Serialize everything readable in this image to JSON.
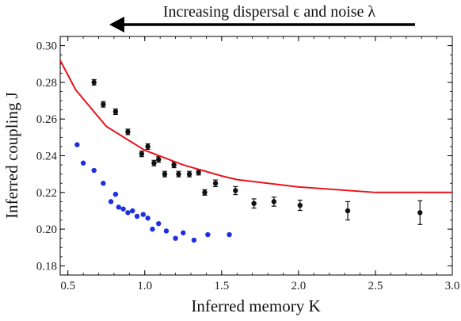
{
  "chart_data": {
    "type": "scatter",
    "title": "",
    "banner": {
      "text": "Increasing dispersal ϵ and noise λ",
      "direction": "left"
    },
    "xlabel": "Inferred memory K",
    "ylabel": "Inferred coupling J",
    "xlim": [
      0.45,
      3.0
    ],
    "ylim": [
      0.175,
      0.305
    ],
    "x_ticks": [
      0.5,
      1.0,
      1.5,
      2.0,
      2.5,
      3.0
    ],
    "x_tick_labels": [
      "0.5",
      "1.0",
      "1.5",
      "2.0",
      "2.5",
      "3.0"
    ],
    "y_ticks": [
      0.18,
      0.2,
      0.22,
      0.24,
      0.26,
      0.28,
      0.3
    ],
    "y_tick_labels": [
      "0.18",
      "0.20",
      "0.22",
      "0.24",
      "0.26",
      "0.28",
      "0.30"
    ],
    "grid": false,
    "series": [
      {
        "type": "scatter",
        "color": "#111111",
        "points": [
          {
            "x": 0.67,
            "y": 0.28,
            "err": 0.0015
          },
          {
            "x": 0.73,
            "y": 0.268,
            "err": 0.0015
          },
          {
            "x": 0.81,
            "y": 0.264,
            "err": 0.0015
          },
          {
            "x": 0.89,
            "y": 0.253,
            "err": 0.0015
          },
          {
            "x": 0.98,
            "y": 0.241,
            "err": 0.0015
          },
          {
            "x": 1.02,
            "y": 0.245,
            "err": 0.0015
          },
          {
            "x": 1.06,
            "y": 0.236,
            "err": 0.0015
          },
          {
            "x": 1.09,
            "y": 0.238,
            "err": 0.0015
          },
          {
            "x": 1.13,
            "y": 0.23,
            "err": 0.0015
          },
          {
            "x": 1.19,
            "y": 0.235,
            "err": 0.0015
          },
          {
            "x": 1.22,
            "y": 0.23,
            "err": 0.0015
          },
          {
            "x": 1.29,
            "y": 0.23,
            "err": 0.0015
          },
          {
            "x": 1.35,
            "y": 0.231,
            "err": 0.0015
          },
          {
            "x": 1.39,
            "y": 0.22,
            "err": 0.0015
          },
          {
            "x": 1.46,
            "y": 0.225,
            "err": 0.0018
          },
          {
            "x": 1.59,
            "y": 0.221,
            "err": 0.0022
          },
          {
            "x": 1.71,
            "y": 0.214,
            "err": 0.0025
          },
          {
            "x": 1.84,
            "y": 0.215,
            "err": 0.0025
          },
          {
            "x": 2.01,
            "y": 0.213,
            "err": 0.0028
          },
          {
            "x": 2.32,
            "y": 0.21,
            "err": 0.005
          },
          {
            "x": 2.79,
            "y": 0.209,
            "err": 0.0065
          }
        ]
      },
      {
        "type": "scatter",
        "color": "#1f2fe0",
        "points": [
          {
            "x": 0.56,
            "y": 0.246
          },
          {
            "x": 0.6,
            "y": 0.236
          },
          {
            "x": 0.67,
            "y": 0.232
          },
          {
            "x": 0.73,
            "y": 0.225
          },
          {
            "x": 0.78,
            "y": 0.215
          },
          {
            "x": 0.81,
            "y": 0.219
          },
          {
            "x": 0.83,
            "y": 0.212
          },
          {
            "x": 0.86,
            "y": 0.211
          },
          {
            "x": 0.89,
            "y": 0.209
          },
          {
            "x": 0.92,
            "y": 0.21
          },
          {
            "x": 0.95,
            "y": 0.207
          },
          {
            "x": 0.99,
            "y": 0.208
          },
          {
            "x": 1.02,
            "y": 0.206
          },
          {
            "x": 1.05,
            "y": 0.2
          },
          {
            "x": 1.09,
            "y": 0.203
          },
          {
            "x": 1.14,
            "y": 0.199
          },
          {
            "x": 1.2,
            "y": 0.195
          },
          {
            "x": 1.25,
            "y": 0.198
          },
          {
            "x": 1.32,
            "y": 0.194
          },
          {
            "x": 1.41,
            "y": 0.197
          },
          {
            "x": 1.55,
            "y": 0.197
          }
        ]
      },
      {
        "type": "line",
        "color": "#e8141c",
        "points": [
          {
            "x": 0.45,
            "y": 0.292
          },
          {
            "x": 0.55,
            "y": 0.276
          },
          {
            "x": 0.75,
            "y": 0.256
          },
          {
            "x": 1.0,
            "y": 0.243
          },
          {
            "x": 1.25,
            "y": 0.235
          },
          {
            "x": 1.5,
            "y": 0.229
          },
          {
            "x": 1.6,
            "y": 0.227
          },
          {
            "x": 2.0,
            "y": 0.223
          },
          {
            "x": 2.5,
            "y": 0.22
          },
          {
            "x": 3.0,
            "y": 0.22
          }
        ]
      }
    ]
  }
}
